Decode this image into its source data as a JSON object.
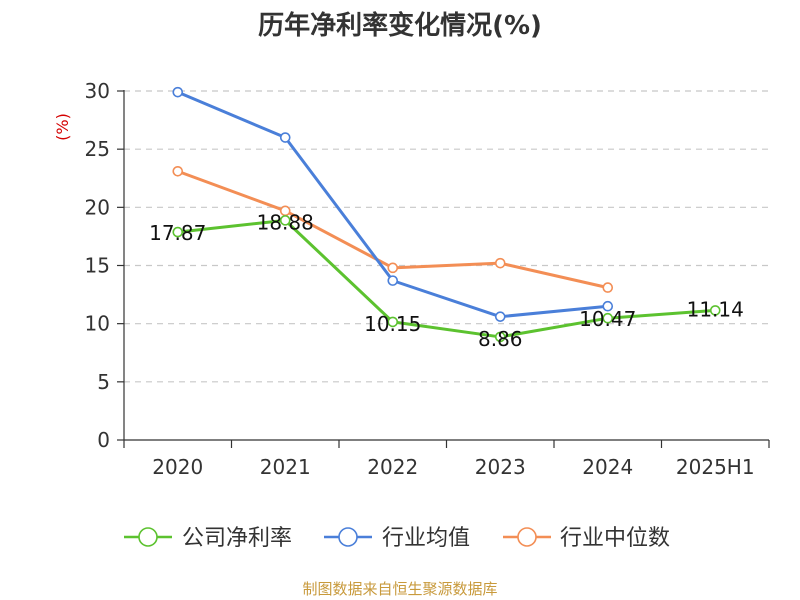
{
  "chart_data": {
    "type": "line",
    "title": "历年净利率变化情况(%)",
    "ylabel": "(%)",
    "categories": [
      "2020",
      "2021",
      "2022",
      "2023",
      "2024",
      "2025H1"
    ],
    "ylim": [
      0,
      30
    ],
    "yticks": [
      0,
      5,
      10,
      15,
      20,
      25,
      30
    ],
    "grid": true,
    "legend_position": "bottom",
    "series": [
      {
        "name": "公司净利率",
        "color": "#5cc22f",
        "values": [
          17.87,
          18.88,
          10.15,
          8.86,
          10.47,
          11.14
        ],
        "labels": [
          "17.87",
          "18.88",
          "10.15",
          "8.86",
          "10.47",
          "11.14"
        ]
      },
      {
        "name": "行业均值",
        "color": "#4a7fd9",
        "values": [
          29.9,
          26.0,
          13.7,
          10.6,
          11.5,
          null
        ]
      },
      {
        "name": "行业中位数",
        "color": "#f38e55",
        "values": [
          23.1,
          19.7,
          14.8,
          15.2,
          13.1,
          null
        ]
      }
    ]
  },
  "footer": {
    "source": "制图数据来自恒生聚源数据库"
  }
}
